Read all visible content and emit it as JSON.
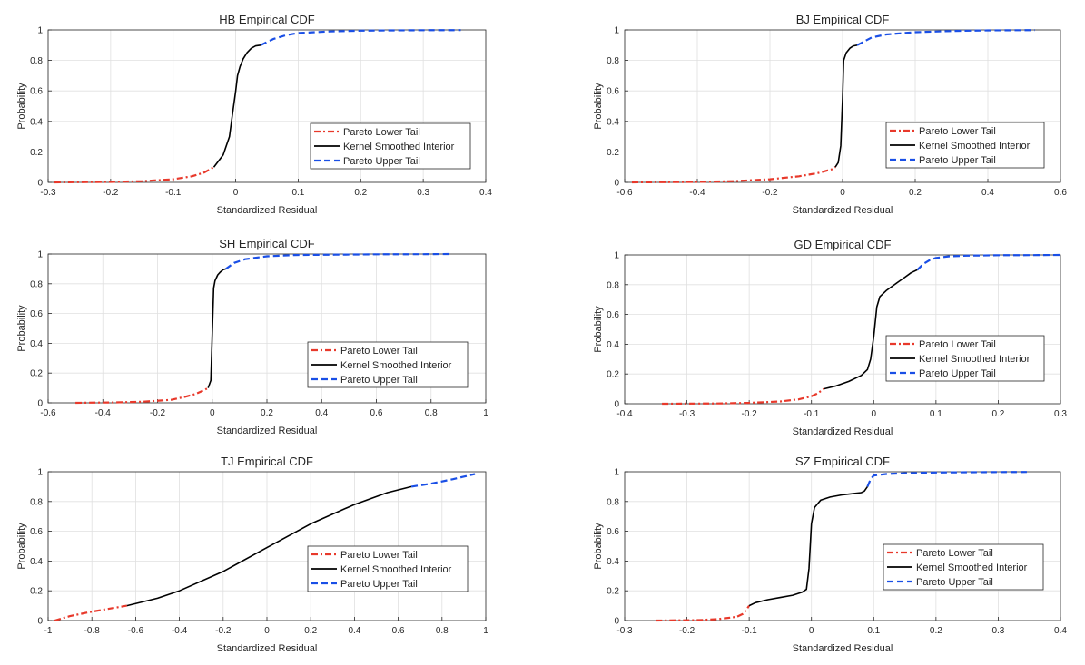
{
  "figure": {
    "ylabel": "Probability",
    "xlabel": "Standardized Residual",
    "legend_labels": [
      "Pareto Lower Tail",
      "Kernel Smoothed Interior",
      "Pareto Upper Tail"
    ],
    "colors": {
      "lower": "#e8392b",
      "interior": "#000000",
      "upper": "#1a4fe6",
      "grid": "#e0e0e0",
      "axis": "#262626"
    }
  },
  "chart_data": [
    {
      "id": "hb",
      "type": "line",
      "title": "HB Empirical CDF",
      "xlabel": "Standardized Residual",
      "ylabel": "Probability",
      "xlim": [
        -0.3,
        0.4
      ],
      "ylim": [
        0,
        1
      ],
      "xticks": [
        "-0.3",
        "-0.2",
        "-0.1",
        "0",
        "0.1",
        "0.2",
        "0.3",
        "0.4"
      ],
      "yticks": [
        "0",
        "0.2",
        "0.4",
        "0.6",
        "0.8",
        "1"
      ],
      "legend_position": "right-middle",
      "series": [
        {
          "name": "Pareto Lower Tail",
          "style": "dashdot",
          "x": [
            -0.29,
            -0.2,
            -0.15,
            -0.1,
            -0.07,
            -0.05,
            -0.035
          ],
          "y": [
            0,
            0.003,
            0.008,
            0.02,
            0.04,
            0.065,
            0.1
          ]
        },
        {
          "name": "Kernel Smoothed Interior",
          "style": "solid",
          "x": [
            -0.035,
            -0.02,
            -0.01,
            -0.005,
            0,
            0.003,
            0.007,
            0.012,
            0.018,
            0.025,
            0.032,
            0.04
          ],
          "y": [
            0.1,
            0.18,
            0.3,
            0.45,
            0.6,
            0.7,
            0.76,
            0.81,
            0.85,
            0.88,
            0.895,
            0.9
          ]
        },
        {
          "name": "Pareto Upper Tail",
          "style": "dashed",
          "x": [
            0.04,
            0.06,
            0.08,
            0.1,
            0.15,
            0.2,
            0.25,
            0.3,
            0.36
          ],
          "y": [
            0.9,
            0.94,
            0.965,
            0.98,
            0.99,
            0.995,
            0.997,
            0.998,
            0.999
          ]
        }
      ]
    },
    {
      "id": "bj",
      "type": "line",
      "title": "BJ Empirical CDF",
      "xlabel": "Standardized Residual",
      "ylabel": "Probability",
      "xlim": [
        -0.6,
        0.6
      ],
      "ylim": [
        0,
        1
      ],
      "xticks": [
        "-0.6",
        "-0.4",
        "-0.2",
        "0",
        "0.2",
        "0.4",
        "0.6"
      ],
      "yticks": [
        "0",
        "0.2",
        "0.4",
        "0.6",
        "0.8",
        "1"
      ],
      "legend_position": "right-middle",
      "series": [
        {
          "name": "Pareto Lower Tail",
          "style": "dashdot",
          "x": [
            -0.58,
            -0.4,
            -0.3,
            -0.2,
            -0.12,
            -0.07,
            -0.03,
            -0.02
          ],
          "y": [
            0,
            0.003,
            0.008,
            0.02,
            0.04,
            0.06,
            0.085,
            0.1
          ]
        },
        {
          "name": "Kernel Smoothed Interior",
          "style": "solid",
          "x": [
            -0.02,
            -0.012,
            -0.005,
            0,
            0.003,
            0.01,
            0.02,
            0.03,
            0.04
          ],
          "y": [
            0.1,
            0.13,
            0.24,
            0.55,
            0.8,
            0.85,
            0.88,
            0.895,
            0.9
          ]
        },
        {
          "name": "Pareto Upper Tail",
          "style": "dashed",
          "x": [
            0.04,
            0.08,
            0.12,
            0.2,
            0.3,
            0.4,
            0.53
          ],
          "y": [
            0.9,
            0.95,
            0.97,
            0.985,
            0.993,
            0.997,
            0.999
          ]
        }
      ]
    },
    {
      "id": "sh",
      "type": "line",
      "title": "SH Empirical CDF",
      "xlabel": "Standardized Residual",
      "ylabel": "Probability",
      "xlim": [
        -0.6,
        1
      ],
      "ylim": [
        0,
        1
      ],
      "xticks": [
        "-0.6",
        "-0.4",
        "-0.2",
        "0",
        "0.2",
        "0.4",
        "0.6",
        "0.8",
        "1"
      ],
      "yticks": [
        "0",
        "0.2",
        "0.4",
        "0.6",
        "0.8",
        "1"
      ],
      "legend_position": "right-lower",
      "series": [
        {
          "name": "Pareto Lower Tail",
          "style": "dashdot",
          "x": [
            -0.5,
            -0.35,
            -0.25,
            -0.15,
            -0.1,
            -0.06,
            -0.03,
            -0.015
          ],
          "y": [
            0,
            0.003,
            0.008,
            0.02,
            0.04,
            0.06,
            0.085,
            0.1
          ]
        },
        {
          "name": "Kernel Smoothed Interior",
          "style": "solid",
          "x": [
            -0.015,
            -0.005,
            0,
            0.005,
            0.01,
            0.02,
            0.03,
            0.04,
            0.05
          ],
          "y": [
            0.1,
            0.15,
            0.45,
            0.77,
            0.82,
            0.86,
            0.88,
            0.895,
            0.9
          ]
        },
        {
          "name": "Pareto Upper Tail",
          "style": "dashed",
          "x": [
            0.05,
            0.08,
            0.12,
            0.2,
            0.3,
            0.45,
            0.6,
            0.75,
            0.87
          ],
          "y": [
            0.9,
            0.94,
            0.965,
            0.985,
            0.993,
            0.996,
            0.998,
            0.999,
            1.0
          ]
        }
      ]
    },
    {
      "id": "gd",
      "type": "line",
      "title": "GD Empirical CDF",
      "xlabel": "Standardized Residual",
      "ylabel": "Probability",
      "xlim": [
        -0.4,
        0.3
      ],
      "ylim": [
        0,
        1
      ],
      "xticks": [
        "-0.4",
        "-0.3",
        "-0.2",
        "-0.1",
        "0",
        "0.1",
        "0.2",
        "0.3"
      ],
      "yticks": [
        "0",
        "0.2",
        "0.4",
        "0.6",
        "0.8",
        "1"
      ],
      "legend_position": "right-middle",
      "series": [
        {
          "name": "Pareto Lower Tail",
          "style": "dashdot",
          "x": [
            -0.34,
            -0.25,
            -0.2,
            -0.15,
            -0.12,
            -0.1,
            -0.09,
            -0.08
          ],
          "y": [
            0,
            0.002,
            0.006,
            0.015,
            0.03,
            0.05,
            0.07,
            0.1
          ]
        },
        {
          "name": "Kernel Smoothed Interior",
          "style": "solid",
          "x": [
            -0.08,
            -0.06,
            -0.04,
            -0.02,
            -0.01,
            -0.005,
            0,
            0.005,
            0.01,
            0.02,
            0.03,
            0.04,
            0.05,
            0.06,
            0.07
          ],
          "y": [
            0.1,
            0.12,
            0.15,
            0.19,
            0.23,
            0.3,
            0.45,
            0.65,
            0.72,
            0.76,
            0.79,
            0.82,
            0.85,
            0.88,
            0.9
          ]
        },
        {
          "name": "Pareto Upper Tail",
          "style": "dashed",
          "x": [
            0.07,
            0.08,
            0.09,
            0.1,
            0.12,
            0.15,
            0.2,
            0.25,
            0.3
          ],
          "y": [
            0.9,
            0.94,
            0.965,
            0.98,
            0.99,
            0.995,
            0.998,
            0.999,
            1.0
          ]
        }
      ]
    },
    {
      "id": "tj",
      "type": "line",
      "title": "TJ Empirical CDF",
      "xlabel": "Standardized Residual",
      "ylabel": "Probability",
      "xlim": [
        -1,
        1
      ],
      "ylim": [
        0,
        1
      ],
      "xticks": [
        "-1",
        "-0.8",
        "-0.6",
        "-0.4",
        "-0.2",
        "0",
        "0.2",
        "0.4",
        "0.6",
        "0.8",
        "1"
      ],
      "yticks": [
        "0",
        "0.2",
        "0.4",
        "0.6",
        "0.8",
        "1"
      ],
      "legend_position": "right-lower",
      "series": [
        {
          "name": "Pareto Lower Tail",
          "style": "dashdot",
          "x": [
            -0.97,
            -0.9,
            -0.8,
            -0.7,
            -0.64
          ],
          "y": [
            0,
            0.03,
            0.06,
            0.085,
            0.1
          ]
        },
        {
          "name": "Kernel Smoothed Interior",
          "style": "solid",
          "x": [
            -0.64,
            -0.5,
            -0.4,
            -0.2,
            0,
            0.2,
            0.4,
            0.55,
            0.66
          ],
          "y": [
            0.1,
            0.15,
            0.2,
            0.33,
            0.49,
            0.65,
            0.78,
            0.86,
            0.9
          ]
        },
        {
          "name": "Pareto Upper Tail",
          "style": "dashed",
          "x": [
            0.66,
            0.75,
            0.85,
            0.95
          ],
          "y": [
            0.9,
            0.92,
            0.95,
            0.985
          ]
        }
      ]
    },
    {
      "id": "sz",
      "type": "line",
      "title": "SZ Empirical CDF",
      "xlabel": "Standardized Residual",
      "ylabel": "Probability",
      "xlim": [
        -0.3,
        0.4
      ],
      "ylim": [
        0,
        1
      ],
      "xticks": [
        "-0.3",
        "-0.2",
        "-0.1",
        "0",
        "0.1",
        "0.2",
        "0.3",
        "0.4"
      ],
      "yticks": [
        "0",
        "0.2",
        "0.4",
        "0.6",
        "0.8",
        "1"
      ],
      "legend_position": "right-middle",
      "series": [
        {
          "name": "Pareto Lower Tail",
          "style": "dashdot",
          "x": [
            -0.25,
            -0.18,
            -0.15,
            -0.12,
            -0.11,
            -0.105,
            -0.1
          ],
          "y": [
            0,
            0.003,
            0.01,
            0.025,
            0.045,
            0.07,
            0.1
          ]
        },
        {
          "name": "Kernel Smoothed Interior",
          "style": "solid",
          "x": [
            -0.1,
            -0.09,
            -0.07,
            -0.05,
            -0.03,
            -0.015,
            -0.008,
            -0.004,
            0,
            0.005,
            0.015,
            0.03,
            0.05,
            0.07,
            0.08,
            0.085,
            0.09
          ],
          "y": [
            0.1,
            0.12,
            0.14,
            0.155,
            0.17,
            0.19,
            0.21,
            0.35,
            0.65,
            0.76,
            0.81,
            0.83,
            0.845,
            0.855,
            0.86,
            0.87,
            0.9
          ]
        },
        {
          "name": "Pareto Upper Tail",
          "style": "dashed",
          "x": [
            0.09,
            0.095,
            0.1,
            0.12,
            0.15,
            0.2,
            0.25,
            0.3,
            0.35
          ],
          "y": [
            0.9,
            0.95,
            0.975,
            0.985,
            0.99,
            0.995,
            0.997,
            0.998,
            0.999
          ]
        }
      ]
    }
  ]
}
